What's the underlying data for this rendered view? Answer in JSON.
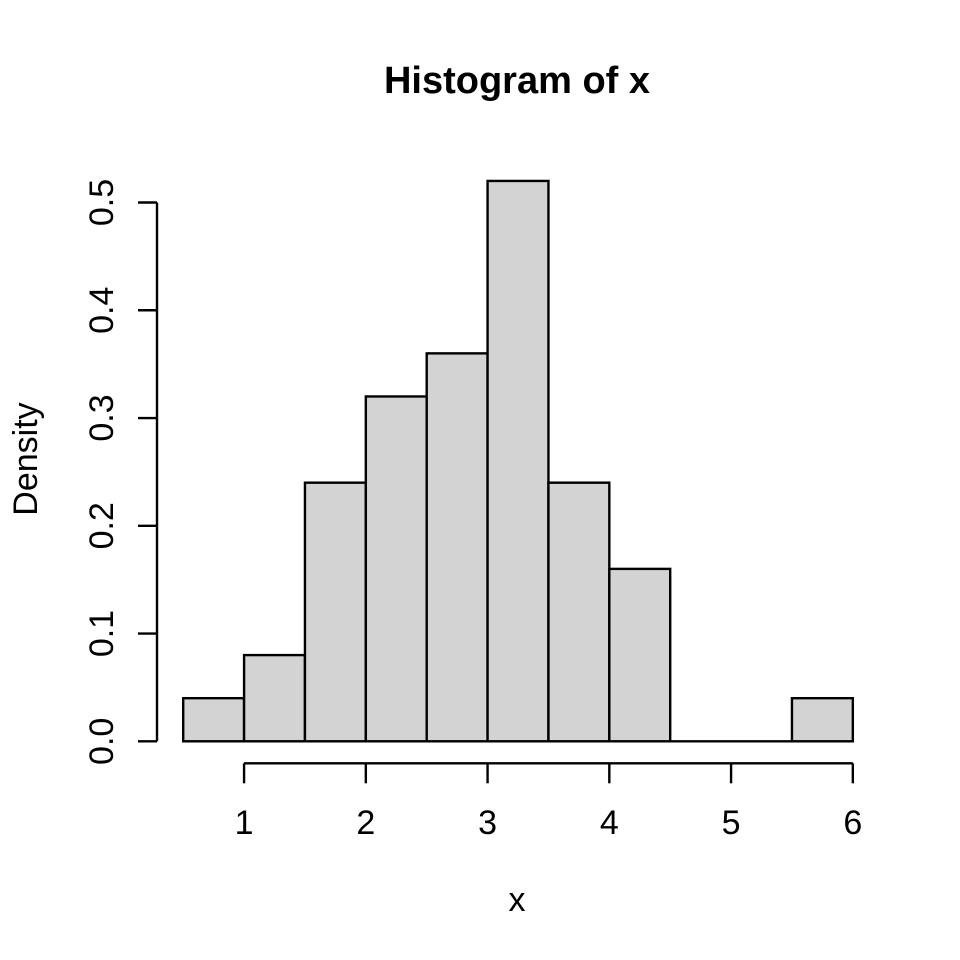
{
  "figure": {
    "background": "#ffffff"
  },
  "chart_data": {
    "type": "bar",
    "subtype": "histogram",
    "title": "Histogram of x",
    "xlabel": "x",
    "ylabel": "Density",
    "bin_edges": [
      0.5,
      1.0,
      1.5,
      2.0,
      2.5,
      3.0,
      3.5,
      4.0,
      4.5,
      5.0,
      5.5,
      6.0
    ],
    "densities": [
      0.04,
      0.08,
      0.24,
      0.32,
      0.36,
      0.52,
      0.24,
      0.16,
      0,
      0,
      0.04
    ],
    "xlim": [
      0.5,
      6.0
    ],
    "ylim": [
      0.0,
      0.52
    ],
    "xticks": {
      "values": [
        1,
        2,
        3,
        4,
        5,
        6
      ],
      "labels": [
        "1",
        "2",
        "3",
        "4",
        "5",
        "6"
      ]
    },
    "yticks": {
      "values": [
        0.0,
        0.1,
        0.2,
        0.3,
        0.4,
        0.5
      ],
      "labels": [
        "0.0",
        "0.1",
        "0.2",
        "0.3",
        "0.4",
        "0.5"
      ]
    },
    "grid": false,
    "legend_position": "none",
    "colors": {
      "bar_fill": "#d3d3d3",
      "bar_stroke": "#000000",
      "axis": "#000000",
      "text": "#000000"
    }
  }
}
